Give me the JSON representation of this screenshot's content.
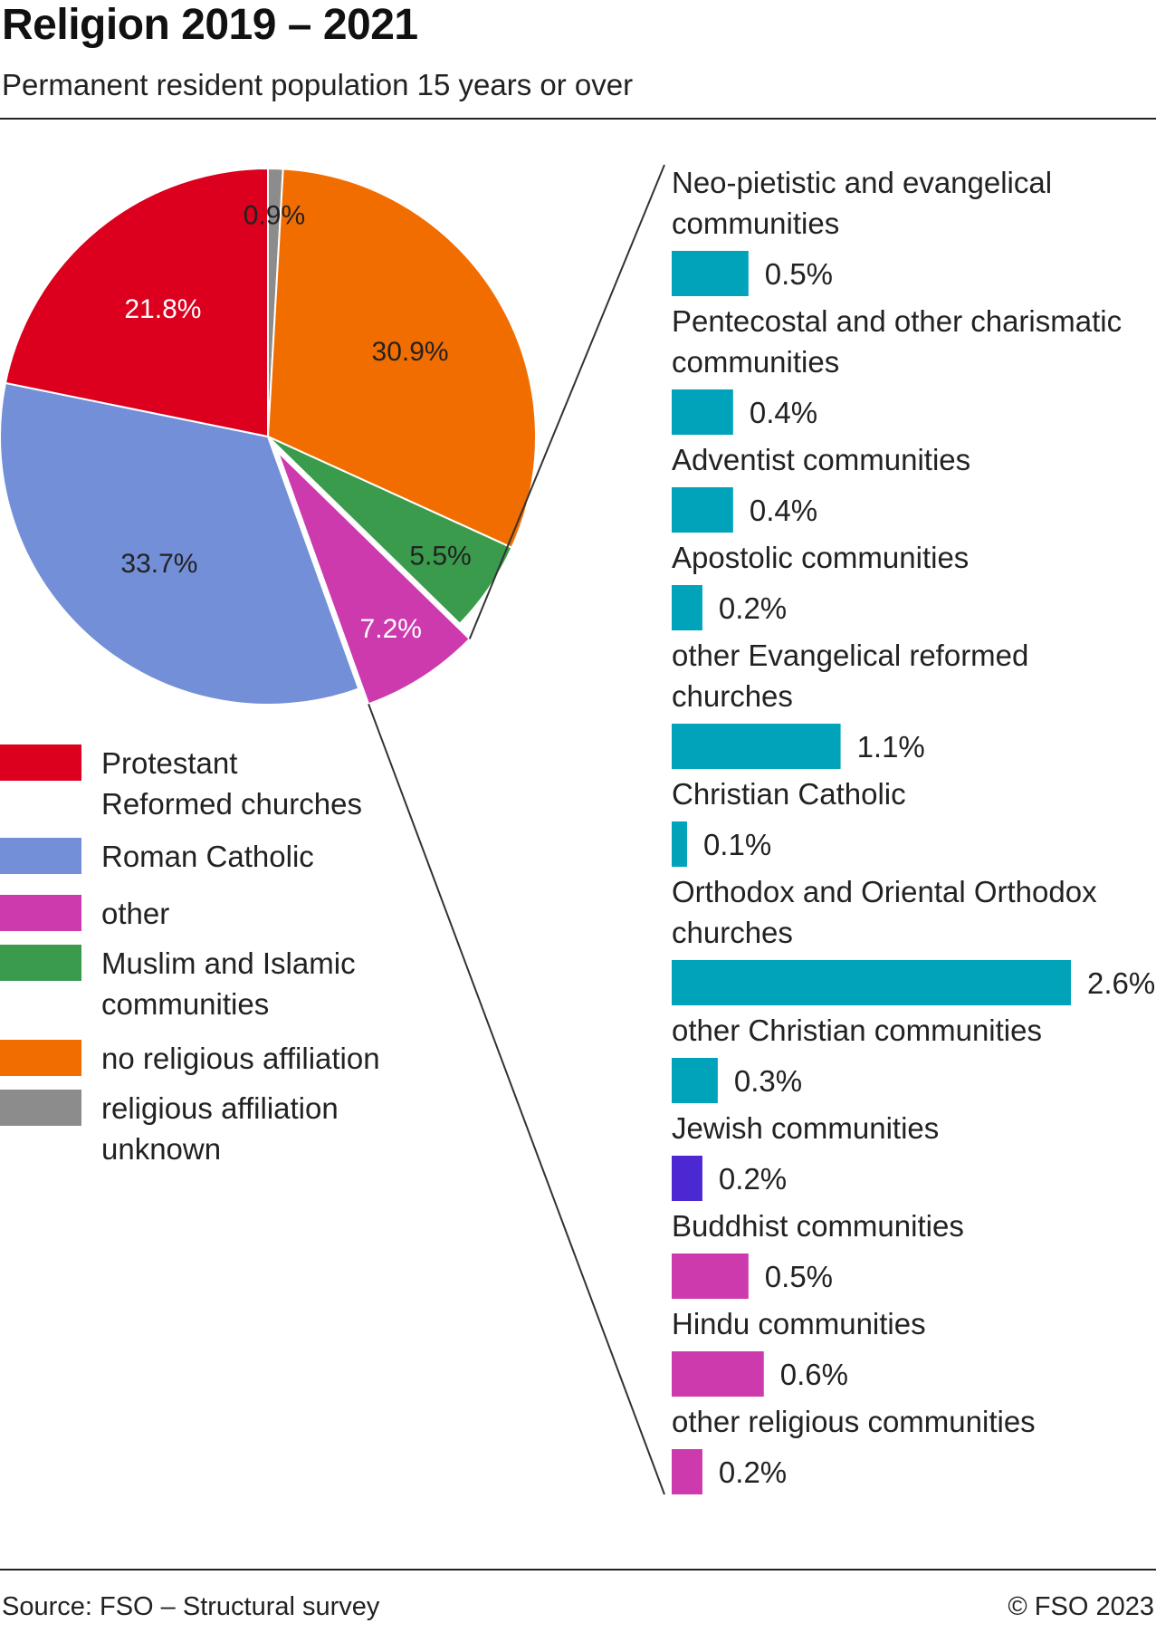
{
  "title": "Religion 2019 – 2021",
  "subtitle": "Permanent resident population 15 years or over",
  "source": "Source: FSO – Structural survey",
  "copyright": "© FSO 2023",
  "chart_data": [
    {
      "type": "pie",
      "start_angle_deg": 0,
      "direction": "clockwise",
      "slices": [
        {
          "label": "religious affiliation unknown",
          "value": 0.9,
          "value_label": "0.9%",
          "color": "#8c8c8c",
          "label_color": "#222222",
          "exploded": false
        },
        {
          "label": "no religious affiliation",
          "value": 30.9,
          "value_label": "30.9%",
          "color": "#f26d00",
          "label_color": "#222222",
          "exploded": false
        },
        {
          "label": "Muslim and Islamic communities",
          "value": 5.5,
          "value_label": "5.5%",
          "color": "#3a9b4c",
          "label_color": "#222222",
          "exploded": false
        },
        {
          "label": "other",
          "value": 7.2,
          "value_label": "7.2%",
          "color": "#cc3aae",
          "label_color": "#ffffff",
          "exploded": true
        },
        {
          "label": "Roman Catholic",
          "value": 33.7,
          "value_label": "33.7%",
          "color": "#738fd7",
          "label_color": "#222222",
          "exploded": false
        },
        {
          "label": "Protestant Reformed churches",
          "value": 21.8,
          "value_label": "21.8%",
          "color": "#dc001e",
          "label_color": "#ffffff",
          "exploded": false
        }
      ],
      "legend": {
        "placement": "bottom-left",
        "items": [
          {
            "lines": [
              "Protestant",
              "Reformed  churches"
            ],
            "color": "#dc001e"
          },
          {
            "lines": [
              "Roman Catholic"
            ],
            "color": "#738fd7"
          },
          {
            "lines": [
              "other"
            ],
            "color": "#cc3aae"
          },
          {
            "lines": [
              "Muslim and Islamic",
              "communities"
            ],
            "color": "#3a9b4c"
          },
          {
            "lines": [
              "no religious affiliation"
            ],
            "color": "#f26d00"
          },
          {
            "lines": [
              "religious affiliation",
              "unknown"
            ],
            "color": "#8c8c8c"
          }
        ]
      }
    },
    {
      "type": "bar",
      "orientation": "horizontal",
      "breakdown_of": "other",
      "xlim": [
        0,
        2.6
      ],
      "bars": [
        {
          "lines": [
            "Neo-pietistic and evangelical",
            "communities"
          ],
          "value": 0.5,
          "value_label": "0.5%",
          "color": "#00a3b9"
        },
        {
          "lines": [
            "Pentecostal and other charismatic",
            "communities"
          ],
          "value": 0.4,
          "value_label": "0.4%",
          "color": "#00a3b9"
        },
        {
          "lines": [
            "Adventist communities"
          ],
          "value": 0.4,
          "value_label": "0.4%",
          "color": "#00a3b9"
        },
        {
          "lines": [
            "Apostolic communities"
          ],
          "value": 0.2,
          "value_label": "0.2%",
          "color": "#00a3b9"
        },
        {
          "lines": [
            "other Evangelical reformed",
            "churches"
          ],
          "value": 1.1,
          "value_label": "1.1%",
          "color": "#00a3b9"
        },
        {
          "lines": [
            "Christian Catholic"
          ],
          "value": 0.1,
          "value_label": "0.1%",
          "color": "#00a3b9"
        },
        {
          "lines": [
            "Orthodox and Oriental Orthodox",
            "churches"
          ],
          "value": 2.6,
          "value_label": "2.6%",
          "color": "#00a3b9"
        },
        {
          "lines": [
            "other Christian communities"
          ],
          "value": 0.3,
          "value_label": "0.3%",
          "color": "#00a3b9"
        },
        {
          "lines": [
            "Jewish communities"
          ],
          "value": 0.2,
          "value_label": "0.2%",
          "color": "#4b28d2"
        },
        {
          "lines": [
            "Buddhist communities"
          ],
          "value": 0.5,
          "value_label": "0.5%",
          "color": "#cc3aae"
        },
        {
          "lines": [
            "Hindu communities"
          ],
          "value": 0.6,
          "value_label": "0.6%",
          "color": "#cc3aae"
        },
        {
          "lines": [
            "other religious communities"
          ],
          "value": 0.2,
          "value_label": "0.2%",
          "color": "#cc3aae"
        }
      ]
    }
  ]
}
